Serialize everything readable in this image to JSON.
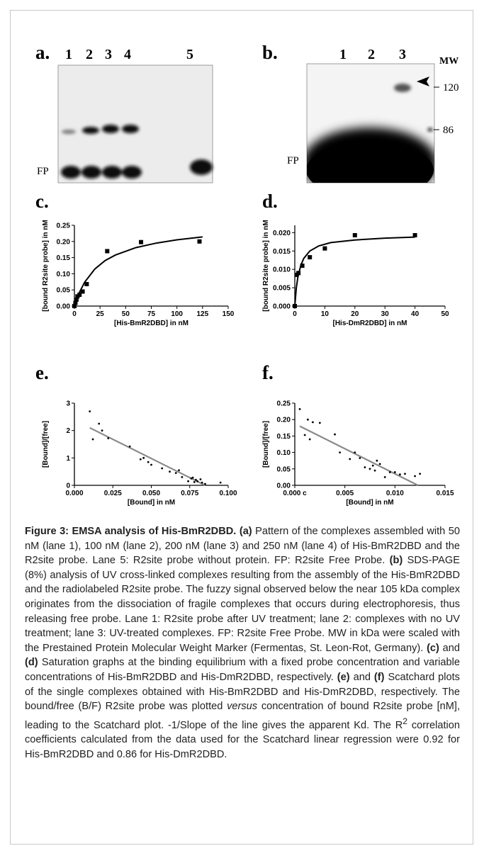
{
  "panels": {
    "a": {
      "label": "a.",
      "lanes": [
        "1",
        "2",
        "3",
        "4",
        "5"
      ],
      "band_label": "FP"
    },
    "b": {
      "label": "b.",
      "lanes": [
        "1",
        "2",
        "3"
      ],
      "mw_label": "MW",
      "mw_marks": [
        "120",
        "86"
      ],
      "band_label": "FP"
    }
  },
  "chart_data": [
    {
      "type": "scatter",
      "panel_label": "c.",
      "x_label": "[His-BmR2DBD] in nM",
      "y_label": "[bound R2site probe] in nM",
      "marker": "square",
      "color": "#000000",
      "fit_color": "#000000",
      "x": [
        0,
        1,
        2,
        3,
        5,
        8,
        12,
        32,
        65,
        122
      ],
      "values": [
        0,
        0.01,
        0.02,
        0.03,
        0.035,
        0.045,
        0.068,
        0.17,
        0.198,
        0.2
      ],
      "fit_x": [
        0,
        5,
        10,
        20,
        30,
        40,
        60,
        80,
        100,
        125
      ],
      "fit_values": [
        0,
        0.043,
        0.074,
        0.115,
        0.141,
        0.158,
        0.181,
        0.195,
        0.205,
        0.214
      ],
      "xlim": [
        0,
        150
      ],
      "xticks": [
        0,
        25,
        50,
        75,
        100,
        125,
        150
      ],
      "ylim": [
        0,
        0.25
      ],
      "yticks": [
        {
          "value": 0,
          "label": "0.00"
        },
        0.05,
        {
          "value": 0.1,
          "label": "0.10"
        },
        0.15,
        {
          "value": 0.2,
          "label": "0.20"
        },
        0.25
      ]
    },
    {
      "type": "scatter",
      "panel_label": "d.",
      "x_label": "[His-DmR2DBD] in nM",
      "y_label": "[bound R2site probe] in nM",
      "marker": "square",
      "color": "#000000",
      "fit_color": "#000000",
      "x": [
        0,
        0.6,
        1.2,
        2.5,
        5,
        10,
        20,
        40
      ],
      "values": [
        0,
        0.0085,
        0.009,
        0.011,
        0.0133,
        0.0157,
        0.0193,
        0.0193
      ],
      "fit_x": [
        0,
        0.5,
        1,
        2,
        3,
        5,
        8,
        12,
        20,
        30,
        40
      ],
      "fit_values": [
        0,
        0.0049,
        0.0078,
        0.0111,
        0.013,
        0.015,
        0.0164,
        0.0173,
        0.018,
        0.0185,
        0.0188
      ],
      "xlim": [
        0,
        50
      ],
      "xticks": [
        0,
        10,
        20,
        30,
        40,
        50
      ],
      "ylim": [
        0,
        0.022
      ],
      "yticks": [
        {
          "value": 0,
          "label": "0.000"
        },
        0.005,
        {
          "value": 0.01,
          "label": "0.010"
        },
        0.015,
        {
          "value": 0.02,
          "label": "0.020"
        }
      ]
    },
    {
      "type": "scatter",
      "panel_label": "e.",
      "x_label": "[Bound] in nM",
      "y_label": "[Bound]/[free]",
      "marker": "dot",
      "color": "#000000",
      "fit_color": "#8a8a8a",
      "x": [
        0.01,
        0.012,
        0.016,
        0.018,
        0.022,
        0.036,
        0.043,
        0.045,
        0.048,
        0.05,
        0.057,
        0.062,
        0.066,
        0.068,
        0.07,
        0.074,
        0.076,
        0.077,
        0.078,
        0.079,
        0.08,
        0.082,
        0.083,
        0.085,
        0.095
      ],
      "values": [
        2.7,
        1.68,
        2.25,
        2.0,
        1.72,
        1.42,
        0.95,
        1.0,
        0.85,
        0.75,
        0.62,
        0.5,
        0.45,
        0.55,
        0.3,
        0.15,
        0.25,
        0.28,
        0.12,
        0.2,
        0.15,
        0.22,
        0.1,
        0.05,
        0.1
      ],
      "fit_x": [
        0.01,
        0.085
      ],
      "fit_values": [
        2.1,
        0
      ],
      "xlim": [
        0,
        0.1
      ],
      "xticks": [
        {
          "value": 0,
          "label": "0.000"
        },
        0.025,
        {
          "value": 0.05,
          "label": "0.050"
        },
        0.075,
        {
          "value": 0.1,
          "label": "0.100"
        }
      ],
      "ylim": [
        0,
        3
      ],
      "yticks": [
        0,
        1,
        2,
        3
      ]
    },
    {
      "type": "scatter",
      "panel_label": "f.",
      "x_label": "[Bound] in nM",
      "y_label": "[Bound]/[free]",
      "marker": "dot",
      "color": "#000000",
      "fit_color": "#8a8a8a",
      "x": [
        0.0005,
        0.001,
        0.0013,
        0.0015,
        0.0018,
        0.0025,
        0.004,
        0.0045,
        0.0055,
        0.006,
        0.0065,
        0.007,
        0.0075,
        0.0078,
        0.008,
        0.0082,
        0.0085,
        0.009,
        0.0095,
        0.01,
        0.0105,
        0.011,
        0.012,
        0.0125
      ],
      "values": [
        0.232,
        0.153,
        0.2,
        0.14,
        0.192,
        0.19,
        0.155,
        0.1,
        0.08,
        0.1,
        0.083,
        0.055,
        0.05,
        0.06,
        0.045,
        0.075,
        0.065,
        0.025,
        0.04,
        0.04,
        0.033,
        0.035,
        0.028,
        0.035
      ],
      "fit_x": [
        0.0005,
        0.0123
      ],
      "fit_values": [
        0.18,
        0
      ],
      "xlim": [
        0,
        0.015
      ],
      "xticks": [
        {
          "value": 0,
          "label": "0.000 c"
        },
        0.005,
        {
          "value": 0.01,
          "label": "0.010"
        },
        0.015
      ],
      "ylim": [
        0,
        0.25
      ],
      "yticks": [
        {
          "value": 0,
          "label": "0.00"
        },
        0.05,
        {
          "value": 0.1,
          "label": "0.10"
        },
        0.15,
        {
          "value": 0.2,
          "label": "0.20"
        },
        0.25
      ]
    }
  ],
  "caption": [
    {
      "text": "Figure 3: EMSA analysis of His-BmR2DBD.",
      "style": "bold"
    },
    {
      "text": " ",
      "style": "plain"
    },
    {
      "text": "(a)",
      "style": "bold"
    },
    {
      "text": " Pattern of the complexes assembled with 50 nM (lane 1), 100 nM (lane 2), 200 nM (lane 3) and 250 nM (lane 4) of His-BmR2DBD and the R2site probe. Lane 5: R2site probe without protein. FP: R2site Free Probe. ",
      "style": "plain"
    },
    {
      "text": "(b)",
      "style": "bold"
    },
    {
      "text": " SDS-PAGE (8%) analysis of UV cross-linked complexes resulting from the assembly of the His-BmR2DBD and the radiolabeled R2site probe. The fuzzy signal observed below the near 105 kDa complex originates from the dissociation of fragile complexes that occurs during electrophoresis, thus releasing free probe. Lane 1: R2site probe after UV treatment; lane 2: complexes with no UV treatment; lane 3: UV-treated complexes. FP: R2site Free Probe. MW in kDa were scaled with the Prestained Protein Molecular Weight Marker (Fermentas, St. Leon-Rot, Germany). ",
      "style": "plain"
    },
    {
      "text": "(c)",
      "style": "bold"
    },
    {
      "text": " and ",
      "style": "plain"
    },
    {
      "text": "(d)",
      "style": "bold"
    },
    {
      "text": " Saturation graphs at the binding equilibrium with a fixed probe concentration and variable concentrations of His-BmR2DBD and His-DmR2DBD, respectively. ",
      "style": "plain"
    },
    {
      "text": "(e)",
      "style": "bold"
    },
    {
      "text": " and ",
      "style": "plain"
    },
    {
      "text": "(f)",
      "style": "bold"
    },
    {
      "text": " Scatchard plots of the single complexes obtained with His-BmR2DBD and His-DmR2DBD, respectively. The bound/free (B/F) R2site probe was plotted ",
      "style": "plain"
    },
    {
      "text": "versus",
      "style": "italic"
    },
    {
      "text": " concentration of bound R2site probe [nM], leading to the Scatchard plot. -1/Slope of the line gives the apparent Kd. The R",
      "style": "plain"
    },
    {
      "text": "2",
      "style": "sup"
    },
    {
      "text": " correlation coefficients calculated from the data used for the Scatchard linear regression were 0.92 for His-BmR2DBD and 0.86 for His-DmR2DBD.",
      "style": "plain"
    }
  ]
}
